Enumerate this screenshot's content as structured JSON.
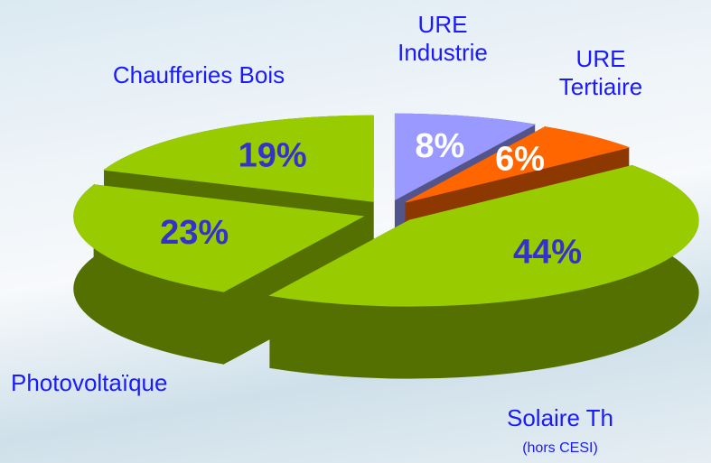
{
  "chart_data": {
    "type": "pie",
    "categories": [
      "URE Industrie",
      "URE Tertiaire",
      "Solaire Th",
      "Photovoltaïque",
      "Chaufferies Bois"
    ],
    "values": [
      8,
      6,
      44,
      23,
      19
    ],
    "value_labels": [
      "8%",
      "6%",
      "44%",
      "23%",
      "19%"
    ],
    "colors": [
      "#9999ff",
      "#ff6600",
      "#99cc00",
      "#99cc00",
      "#99cc00"
    ],
    "label_colors": [
      "#ffffff",
      "#ffffff",
      "#3333cc",
      "#3333cc",
      "#3333cc"
    ],
    "annotation": "(hors CESI)"
  }
}
